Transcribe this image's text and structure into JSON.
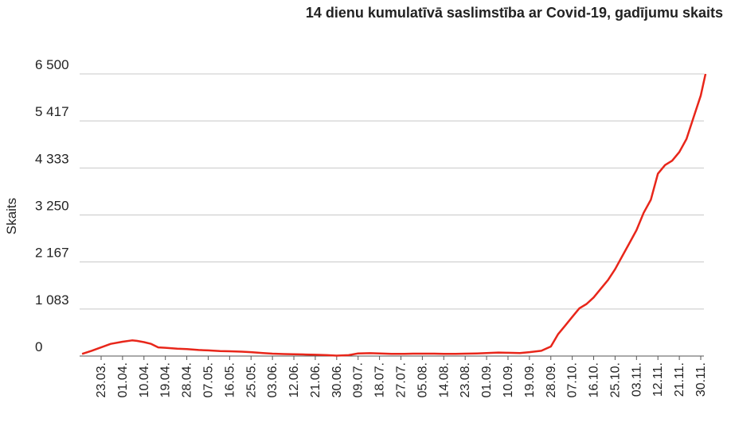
{
  "chart_data": {
    "type": "line",
    "title": "14 dienu kumulatīvā saslimstība ar Covid-19, gadījumu skaits",
    "xlabel": "",
    "ylabel": "Skaits",
    "ylim": [
      0,
      6500
    ],
    "yticks": [
      0,
      1083,
      2167,
      3250,
      4333,
      5417,
      6500
    ],
    "ytick_labels": [
      "0",
      "1 083",
      "2 167",
      "3 250",
      "4 333",
      "5 417",
      "6 500"
    ],
    "xtick_labels": [
      "23.03.",
      "01.04.",
      "10.04.",
      "19.04.",
      "28.04.",
      "07.05.",
      "16.05.",
      "25.05.",
      "03.06.",
      "12.06.",
      "21.06.",
      "30.06.",
      "09.07.",
      "18.07.",
      "27.07.",
      "05.08.",
      "14.08.",
      "23.08.",
      "01.09.",
      "10.09.",
      "19.09.",
      "28.09.",
      "07.10.",
      "16.10.",
      "25.10.",
      "03.11.",
      "12.11.",
      "21.11.",
      "30.11."
    ],
    "grid": true,
    "legend": "none",
    "color": "#e8261a",
    "series": [
      {
        "x": [
          "15.03.",
          "19.03.",
          "23.03.",
          "27.03.",
          "01.04.",
          "05.04.",
          "07.04.",
          "10.04.",
          "13.04.",
          "16.04.",
          "19.04.",
          "24.04.",
          "28.04.",
          "03.05.",
          "07.05.",
          "12.05.",
          "16.05.",
          "21.05.",
          "25.05.",
          "30.05.",
          "03.06.",
          "08.06.",
          "12.06.",
          "17.06.",
          "21.06.",
          "26.06.",
          "30.06.",
          "05.07.",
          "09.07.",
          "14.07.",
          "18.07.",
          "23.07.",
          "27.07.",
          "01.08.",
          "05.08.",
          "10.08.",
          "14.08.",
          "19.08.",
          "23.08.",
          "28.08.",
          "01.09.",
          "06.09.",
          "10.09.",
          "15.09.",
          "19.09.",
          "24.09.",
          "28.09.",
          "01.10.",
          "04.10.",
          "07.10.",
          "10.10.",
          "13.10.",
          "16.10.",
          "19.10.",
          "22.10.",
          "25.10.",
          "28.10.",
          "31.10.",
          "03.11.",
          "06.11.",
          "09.11.",
          "12.11.",
          "15.11.",
          "18.11.",
          "21.11.",
          "24.11.",
          "27.11.",
          "30.11.",
          "02.12."
        ],
        "values": [
          50,
          120,
          200,
          280,
          330,
          360,
          350,
          320,
          280,
          200,
          190,
          170,
          160,
          140,
          130,
          115,
          110,
          100,
          90,
          70,
          55,
          45,
          40,
          35,
          30,
          20,
          10,
          20,
          60,
          65,
          60,
          50,
          50,
          55,
          55,
          55,
          50,
          50,
          55,
          60,
          70,
          80,
          75,
          70,
          90,
          120,
          220,
          500,
          700,
          900,
          1100,
          1200,
          1350,
          1550,
          1750,
          2000,
          2300,
          2600,
          2900,
          3300,
          3600,
          4200,
          4400,
          4500,
          4700,
          5000,
          5500,
          6000,
          6500
        ]
      }
    ]
  }
}
